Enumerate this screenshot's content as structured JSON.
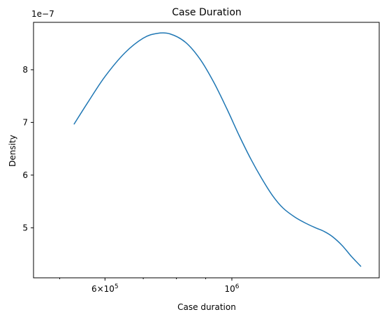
{
  "chart_data": {
    "type": "line",
    "title": "Case Duration",
    "xlabel": "Case duration",
    "ylabel": "Density",
    "x_scale": "log",
    "y_offset_label": "1e−7",
    "xlim": [
      450000,
      1810000
    ],
    "ylim": [
      4.05e-07,
      8.9e-07
    ],
    "x_major_ticks": [
      {
        "value": 600000,
        "label_base": "6×10",
        "label_exp": "5"
      },
      {
        "value": 1000000,
        "label_base": "10",
        "label_exp": "6"
      }
    ],
    "x_minor_ticks": [
      500000,
      700000,
      800000,
      900000
    ],
    "y_ticks": [
      {
        "value": 5e-07,
        "label": "5"
      },
      {
        "value": 6e-07,
        "label": "6"
      },
      {
        "value": 7e-07,
        "label": "7"
      },
      {
        "value": 8e-07,
        "label": "8"
      }
    ],
    "grid": false,
    "color": "#1f77b4",
    "series": [
      {
        "x": [
          530000,
          560000,
          600000,
          650000,
          700000,
          740000,
          780000,
          830000,
          880000,
          930000,
          980000,
          1030000,
          1080000,
          1130000,
          1180000,
          1230000,
          1290000,
          1350000,
          1400000,
          1450000,
          1500000,
          1560000,
          1620000,
          1680000
        ],
        "y": [
          6.97e-07,
          7.38e-07,
          7.87e-07,
          8.32e-07,
          8.6e-07,
          8.69e-07,
          8.68e-07,
          8.52e-07,
          8.2e-07,
          7.76e-07,
          7.26e-07,
          6.75e-07,
          6.3e-07,
          5.92e-07,
          5.6e-07,
          5.37e-07,
          5.2e-07,
          5.08e-07,
          5e-07,
          4.93e-07,
          4.83e-07,
          4.66e-07,
          4.45e-07,
          4.27e-07
        ]
      }
    ]
  }
}
